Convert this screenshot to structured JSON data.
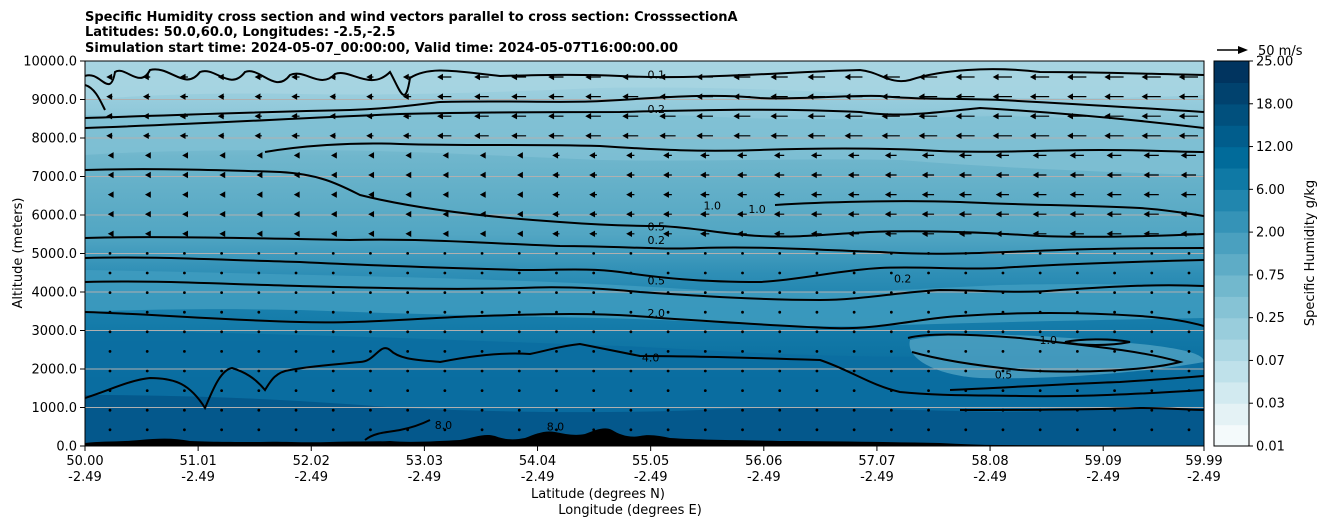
{
  "chart_data": {
    "type": "contour",
    "title_lines": [
      "Specific Humidity cross section and wind vectors parallel to cross section: CrosssectionA",
      "Latitudes: 50.0,60.0, Longitudes: -2.5,-2.5",
      "Simulation start time: 2024-05-07_00:00:00, Valid time: 2024-05-07T16:00:00.00"
    ],
    "ylabel": "Altitude (meters)",
    "xlabel_lat": "Latitude (degrees N)",
    "xlabel_lon": "Longitude (degrees E)",
    "ylim": [
      0,
      10000
    ],
    "xlim": [
      50.0,
      59.99
    ],
    "y_ticks": [
      "0.0",
      "1000.0",
      "2000.0",
      "3000.0",
      "4000.0",
      "5000.0",
      "6000.0",
      "7000.0",
      "8000.0",
      "9000.0",
      "10000.0"
    ],
    "x_ticks": [
      {
        "lat": "50.00",
        "lon": "-2.49"
      },
      {
        "lat": "51.01",
        "lon": "-2.49"
      },
      {
        "lat": "52.02",
        "lon": "-2.49"
      },
      {
        "lat": "53.03",
        "lon": "-2.49"
      },
      {
        "lat": "54.04",
        "lon": "-2.49"
      },
      {
        "lat": "55.05",
        "lon": "-2.49"
      },
      {
        "lat": "56.06",
        "lon": "-2.49"
      },
      {
        "lat": "57.07",
        "lon": "-2.49"
      },
      {
        "lat": "58.08",
        "lon": "-2.49"
      },
      {
        "lat": "59.09",
        "lon": "-2.49"
      },
      {
        "lat": "59.99",
        "lon": "-2.49"
      }
    ],
    "grid": "horizontal",
    "colorbar": {
      "label": "Specific Humidity g/kg",
      "levels": [
        0.01,
        0.02,
        0.03,
        0.05,
        0.07,
        0.1,
        0.25,
        0.5,
        0.75,
        1.0,
        2.0,
        4.0,
        6.0,
        8.0,
        12.0,
        15.0,
        18.0,
        20.0,
        25.0
      ],
      "tick_labels": [
        "0.01",
        "0.03",
        "0.07",
        "0.25",
        "0.75",
        "2.00",
        "6.00",
        "12.00",
        "18.00",
        "25.00"
      ],
      "colors": [
        "#f4fafb",
        "#e4f2f5",
        "#d2eaf0",
        "#bfe1ea",
        "#acd7e3",
        "#99cddc",
        "#86c3d5",
        "#72b8cd",
        "#5eacc6",
        "#4aa0bf",
        "#3593b7",
        "#2186ae",
        "#0f79a5",
        "#016b9a",
        "#015d8c",
        "#01507d",
        "#01426e",
        "#01345f",
        "#002a52"
      ]
    },
    "contour_labels": [
      {
        "text": "0.1",
        "lat": 55.1,
        "alt": 9600
      },
      {
        "text": "0.2",
        "lat": 55.1,
        "alt": 8700
      },
      {
        "text": "0.5",
        "lat": 55.1,
        "alt": 5650
      },
      {
        "text": "0.2",
        "lat": 55.1,
        "alt": 5300
      },
      {
        "text": "0.5",
        "lat": 55.1,
        "alt": 4250
      },
      {
        "text": "2.0",
        "lat": 55.1,
        "alt": 3400
      },
      {
        "text": "4.0",
        "lat": 55.05,
        "alt": 2250
      },
      {
        "text": "1.0",
        "lat": 55.6,
        "alt": 6200
      },
      {
        "text": "1.0",
        "lat": 56.0,
        "alt": 6100
      },
      {
        "text": "0.2",
        "lat": 57.3,
        "alt": 4300
      },
      {
        "text": "1.0",
        "lat": 58.6,
        "alt": 2700
      },
      {
        "text": "0.5",
        "lat": 58.2,
        "alt": 1800
      },
      {
        "text": "8.0",
        "lat": 53.2,
        "alt": 500
      },
      {
        "text": "8.0",
        "lat": 54.2,
        "alt": 450
      }
    ],
    "wind_reference": {
      "label": "50 m/s",
      "value": 50
    }
  }
}
